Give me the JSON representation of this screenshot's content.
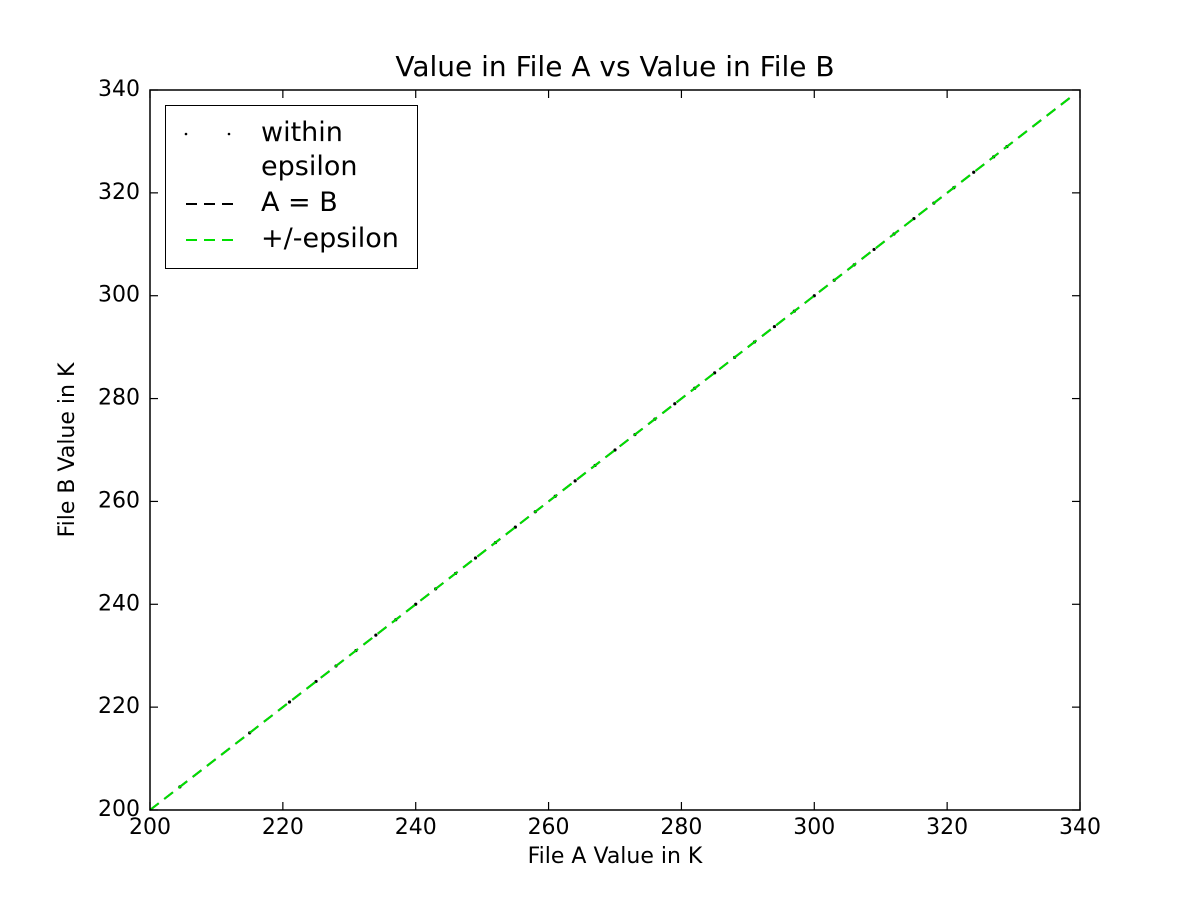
{
  "chart_data": {
    "type": "scatter",
    "title": "Value in File A vs Value in File B",
    "xlabel": "File A Value in K",
    "ylabel": "File B Value in K",
    "xlim": [
      200,
      340
    ],
    "ylim": [
      200,
      340
    ],
    "xticks": [
      200,
      220,
      240,
      260,
      280,
      300,
      320,
      340
    ],
    "yticks": [
      200,
      220,
      240,
      260,
      280,
      300,
      320,
      340
    ],
    "legend": "upper left",
    "series": [
      {
        "name": "within epsilon",
        "color": "#000000",
        "style": "dots",
        "x": [
          204.5,
          215,
          221,
          225,
          228,
          231,
          234,
          237,
          240,
          243,
          246,
          249,
          252,
          255,
          258,
          261,
          264,
          267,
          270,
          273,
          276,
          279,
          282,
          285,
          288,
          291,
          294,
          297,
          300,
          303,
          306,
          309,
          312,
          315,
          318,
          321,
          324,
          327,
          329
        ],
        "values": [
          204.5,
          215,
          221,
          225,
          228,
          231,
          234,
          237,
          240,
          243,
          246,
          249,
          252,
          255,
          258,
          261,
          264,
          267,
          270,
          273,
          276,
          279,
          282,
          285,
          288,
          291,
          294,
          297,
          300,
          303,
          306,
          309,
          312,
          315,
          318,
          321,
          324,
          327,
          329
        ]
      },
      {
        "name": "A = B",
        "color": "#000000",
        "style": "dashed",
        "x": [
          200,
          338.5
        ],
        "values": [
          200,
          338.5
        ]
      },
      {
        "name": "+/-epsilon",
        "color": "#00e000",
        "style": "dashed",
        "x": [
          200,
          338.5
        ],
        "values": [
          200,
          338.5
        ]
      }
    ]
  }
}
